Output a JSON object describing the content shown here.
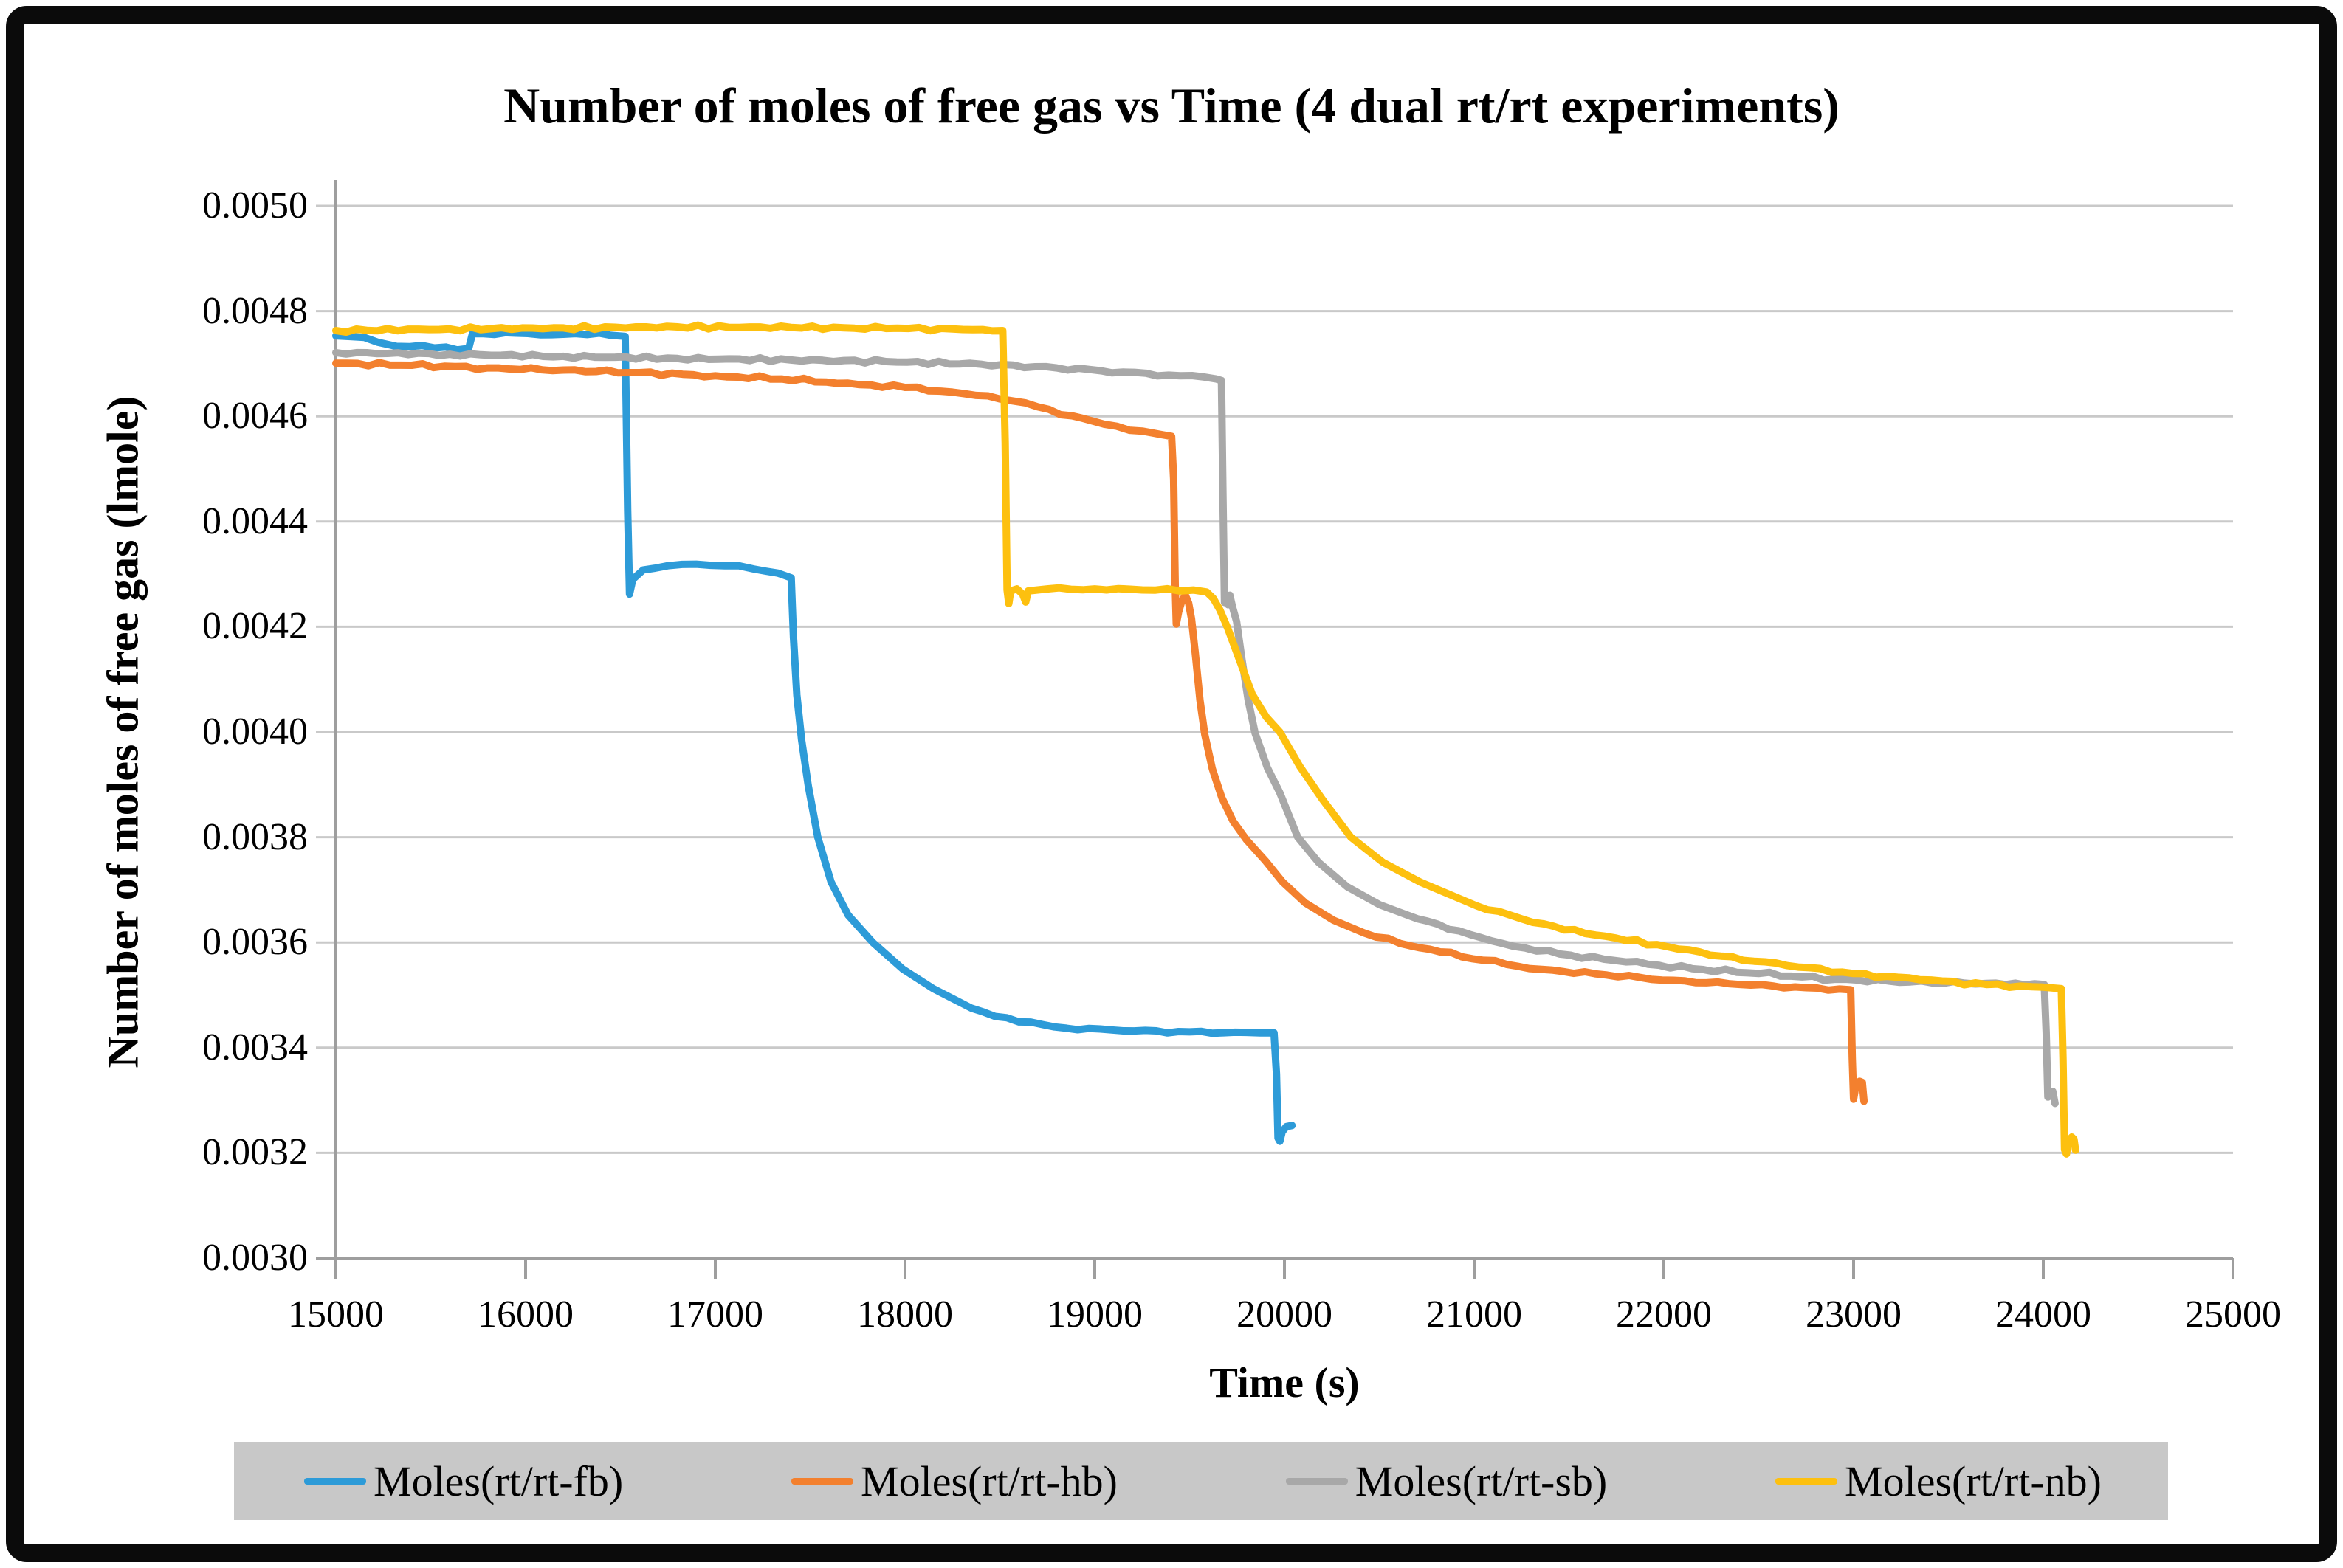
{
  "chart_data": {
    "type": "line",
    "title": "Number of moles of free gas vs Time (4 dual rt/rt experiments)",
    "xlabel": "Time (s)",
    "ylabel": "Number of moles of free gas (lmole)",
    "xlim": [
      15000,
      25000
    ],
    "ylim": [
      0.003,
      0.005
    ],
    "x_ticks": [
      "15000",
      "16000",
      "17000",
      "18000",
      "19000",
      "20000",
      "21000",
      "22000",
      "23000",
      "24000",
      "25000"
    ],
    "y_ticks": [
      "0.0030",
      "0.0032",
      "0.0034",
      "0.0036",
      "0.0038",
      "0.0040",
      "0.0042",
      "0.0044",
      "0.0046",
      "0.0048",
      "0.0050"
    ],
    "grid": "horizontal",
    "grid_color": "#c9c9c9",
    "axis_color": "#9e9e9e",
    "legend": {
      "position": "bottom",
      "bg": "#c8c8c8"
    },
    "series": [
      {
        "id": "fb",
        "name": "Moles(rt/rt-fb)",
        "color": "#2d9bd8",
        "points": [
          [
            15000,
            0.004753
          ],
          [
            15150,
            0.00475
          ],
          [
            15220,
            0.004741
          ],
          [
            15320,
            0.004733
          ],
          [
            15520,
            0.00473
          ],
          [
            15700,
            0.004729
          ],
          [
            15720,
            0.004757
          ],
          [
            15950,
            0.004758
          ],
          [
            16200,
            0.004756
          ],
          [
            16450,
            0.004754
          ],
          [
            16525,
            0.004752
          ],
          [
            16538,
            0.00442
          ],
          [
            16548,
            0.004262
          ],
          [
            16565,
            0.00429
          ],
          [
            16620,
            0.004308
          ],
          [
            16750,
            0.004316
          ],
          [
            16900,
            0.004319
          ],
          [
            17050,
            0.004316
          ],
          [
            17200,
            0.00431
          ],
          [
            17330,
            0.004302
          ],
          [
            17400,
            0.004293
          ],
          [
            17412,
            0.00418
          ],
          [
            17430,
            0.00407
          ],
          [
            17455,
            0.003985
          ],
          [
            17490,
            0.003898
          ],
          [
            17540,
            0.0038
          ],
          [
            17610,
            0.003715
          ],
          [
            17700,
            0.003652
          ],
          [
            17830,
            0.0036
          ],
          [
            17990,
            0.003549
          ],
          [
            18150,
            0.003512
          ],
          [
            18350,
            0.003475
          ],
          [
            18600,
            0.003449
          ],
          [
            18850,
            0.003437
          ],
          [
            19150,
            0.003432
          ],
          [
            19500,
            0.00343
          ],
          [
            19800,
            0.003429
          ],
          [
            19945,
            0.003428
          ],
          [
            19958,
            0.00335
          ],
          [
            19966,
            0.003228
          ],
          [
            19976,
            0.003222
          ],
          [
            19988,
            0.00324
          ],
          [
            20010,
            0.00325
          ],
          [
            20040,
            0.003252
          ]
        ]
      },
      {
        "id": "hb",
        "name": "Moles(rt/rt-hb)",
        "color": "#f3802e",
        "points": [
          [
            15000,
            0.004701
          ],
          [
            15400,
            0.004697
          ],
          [
            15800,
            0.004692
          ],
          [
            16200,
            0.004688
          ],
          [
            16600,
            0.004683
          ],
          [
            17000,
            0.004677
          ],
          [
            17350,
            0.004671
          ],
          [
            17700,
            0.004663
          ],
          [
            18000,
            0.004655
          ],
          [
            18250,
            0.004646
          ],
          [
            18500,
            0.004633
          ],
          [
            18700,
            0.004618
          ],
          [
            18880,
            0.004601
          ],
          [
            19050,
            0.004585
          ],
          [
            19250,
            0.004572
          ],
          [
            19405,
            0.004562
          ],
          [
            19416,
            0.00448
          ],
          [
            19424,
            0.00428
          ],
          [
            19430,
            0.004205
          ],
          [
            19442,
            0.004228
          ],
          [
            19460,
            0.00425
          ],
          [
            19478,
            0.00426
          ],
          [
            19495,
            0.004245
          ],
          [
            19510,
            0.004215
          ],
          [
            19530,
            0.00415
          ],
          [
            19555,
            0.00406
          ],
          [
            19580,
            0.003995
          ],
          [
            19620,
            0.00393
          ],
          [
            19670,
            0.003875
          ],
          [
            19730,
            0.00383
          ],
          [
            19800,
            0.003795
          ],
          [
            19900,
            0.003755
          ],
          [
            19990,
            0.003715
          ],
          [
            20110,
            0.003675
          ],
          [
            20260,
            0.003642
          ],
          [
            20420,
            0.003618
          ],
          [
            20610,
            0.003598
          ],
          [
            20820,
            0.003582
          ],
          [
            21050,
            0.003566
          ],
          [
            21350,
            0.003549
          ],
          [
            21700,
            0.003538
          ],
          [
            22050,
            0.003528
          ],
          [
            22400,
            0.00352
          ],
          [
            22750,
            0.003514
          ],
          [
            22985,
            0.00351
          ],
          [
            22993,
            0.00338
          ],
          [
            23000,
            0.003302
          ],
          [
            23012,
            0.003328
          ],
          [
            23032,
            0.003336
          ],
          [
            23046,
            0.003334
          ],
          [
            23055,
            0.003298
          ]
        ]
      },
      {
        "id": "sb",
        "name": "Moles(rt/rt-sb)",
        "color": "#a8a8a8",
        "points": [
          [
            15000,
            0.004721
          ],
          [
            15600,
            0.004718
          ],
          [
            16200,
            0.004714
          ],
          [
            16800,
            0.00471
          ],
          [
            17400,
            0.004707
          ],
          [
            17900,
            0.004704
          ],
          [
            18400,
            0.004699
          ],
          [
            18800,
            0.004692
          ],
          [
            19150,
            0.004684
          ],
          [
            19450,
            0.004677
          ],
          [
            19640,
            0.004671
          ],
          [
            19668,
            0.004668
          ],
          [
            19676,
            0.00445
          ],
          [
            19684,
            0.004246
          ],
          [
            19694,
            0.004256
          ],
          [
            19703,
            0.004242
          ],
          [
            19712,
            0.00426
          ],
          [
            19726,
            0.004238
          ],
          [
            19748,
            0.00421
          ],
          [
            19775,
            0.00414
          ],
          [
            19808,
            0.004062
          ],
          [
            19845,
            0.003998
          ],
          [
            19910,
            0.003932
          ],
          [
            19975,
            0.003885
          ],
          [
            20070,
            0.0038
          ],
          [
            20180,
            0.003752
          ],
          [
            20330,
            0.003706
          ],
          [
            20500,
            0.003672
          ],
          [
            20700,
            0.003645
          ],
          [
            20920,
            0.003622
          ],
          [
            21150,
            0.003598
          ],
          [
            21450,
            0.003578
          ],
          [
            21800,
            0.003563
          ],
          [
            22150,
            0.00355
          ],
          [
            22500,
            0.003541
          ],
          [
            22900,
            0.00353
          ],
          [
            23300,
            0.003525
          ],
          [
            23700,
            0.003522
          ],
          [
            24005,
            0.00352
          ],
          [
            24015,
            0.00343
          ],
          [
            24024,
            0.003306
          ],
          [
            24036,
            0.003314
          ],
          [
            24050,
            0.003317
          ],
          [
            24062,
            0.003294
          ]
        ]
      },
      {
        "id": "nb",
        "name": "Moles(rt/rt-nb)",
        "color": "#fdc00f",
        "points": [
          [
            15000,
            0.004763
          ],
          [
            15600,
            0.004766
          ],
          [
            16200,
            0.004768
          ],
          [
            16800,
            0.00477
          ],
          [
            17400,
            0.004769
          ],
          [
            17900,
            0.004767
          ],
          [
            18250,
            0.004766
          ],
          [
            18515,
            0.004763
          ],
          [
            18528,
            0.00455
          ],
          [
            18538,
            0.00427
          ],
          [
            18547,
            0.004244
          ],
          [
            18557,
            0.004268
          ],
          [
            18590,
            0.004272
          ],
          [
            18620,
            0.004262
          ],
          [
            18636,
            0.004247
          ],
          [
            18650,
            0.004268
          ],
          [
            18750,
            0.004272
          ],
          [
            19000,
            0.004272
          ],
          [
            19250,
            0.00427
          ],
          [
            19450,
            0.004268
          ],
          [
            19590,
            0.004266
          ],
          [
            19625,
            0.004254
          ],
          [
            19660,
            0.004232
          ],
          [
            19700,
            0.004198
          ],
          [
            19760,
            0.00414
          ],
          [
            19830,
            0.004072
          ],
          [
            19905,
            0.004028
          ],
          [
            19976,
            0.004
          ],
          [
            20080,
            0.003935
          ],
          [
            20200,
            0.003872
          ],
          [
            20350,
            0.0038
          ],
          [
            20520,
            0.003752
          ],
          [
            20720,
            0.003714
          ],
          [
            21010,
            0.00367
          ],
          [
            21310,
            0.003638
          ],
          [
            21640,
            0.003614
          ],
          [
            21965,
            0.003596
          ],
          [
            22300,
            0.003574
          ],
          [
            22650,
            0.003556
          ],
          [
            23000,
            0.003541
          ],
          [
            23350,
            0.003529
          ],
          [
            23700,
            0.00352
          ],
          [
            24000,
            0.003515
          ],
          [
            24095,
            0.003512
          ],
          [
            24104,
            0.00338
          ],
          [
            24112,
            0.003206
          ],
          [
            24122,
            0.003198
          ],
          [
            24132,
            0.003222
          ],
          [
            24150,
            0.00323
          ],
          [
            24162,
            0.003226
          ],
          [
            24170,
            0.003205
          ]
        ]
      }
    ]
  }
}
